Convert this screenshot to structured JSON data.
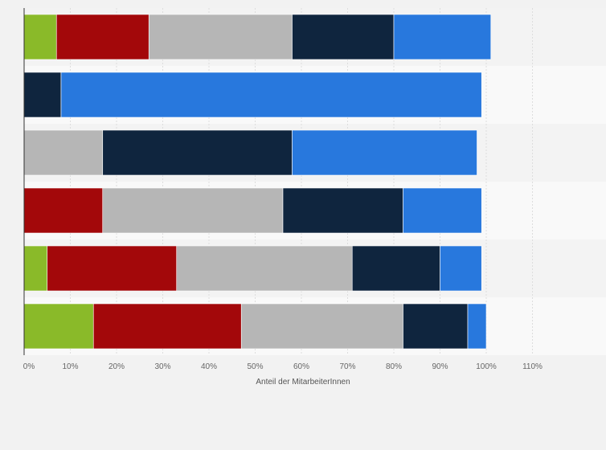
{
  "chart_data": {
    "type": "bar",
    "orientation": "horizontal",
    "stacked": true,
    "xlabel": "Anteil der MitarbeiterInnen",
    "xlim": [
      0,
      120
    ],
    "xticks": [
      0,
      10,
      20,
      30,
      40,
      50,
      60,
      70,
      80,
      90,
      100,
      110
    ],
    "xtick_labels": [
      "0%",
      "10%",
      "20%",
      "30%",
      "40%",
      "50%",
      "60%",
      "70%",
      "80%",
      "90%",
      "100%",
      "110%"
    ],
    "grid": true,
    "legend": "none",
    "rows": 6,
    "series": [
      {
        "color": "#8aba29",
        "values": [
          7,
          0,
          0,
          0,
          5,
          15
        ]
      },
      {
        "color": "#a3080a",
        "values": [
          20,
          0,
          0,
          17,
          28,
          32
        ]
      },
      {
        "color": "#b6b6b6",
        "values": [
          31,
          0,
          17,
          39,
          38,
          35
        ]
      },
      {
        "color": "#0f253e",
        "values": [
          22,
          8,
          41,
          26,
          19,
          14
        ]
      },
      {
        "color": "#2878dd",
        "values": [
          21,
          91,
          40,
          17,
          9,
          4
        ]
      }
    ]
  }
}
